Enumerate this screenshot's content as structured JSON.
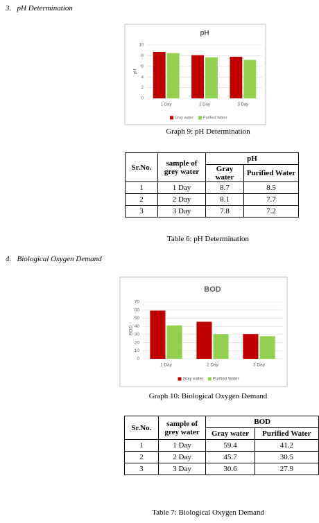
{
  "headings": [
    {
      "number": "3.",
      "text": "pH Determination"
    },
    {
      "number": "4.",
      "text": "Biological Oxygen Demand"
    }
  ],
  "chart_data": [
    {
      "type": "bar",
      "title": "pH",
      "y_label": "pH",
      "categories": [
        "1 Day",
        "2 Day",
        "3 Day"
      ],
      "series": [
        {
          "name": "Gray water",
          "color": "#c00000",
          "values": [
            8.7,
            8.1,
            7.8
          ]
        },
        {
          "name": "Purified Water",
          "color": "#92d050",
          "values": [
            8.5,
            7.7,
            7.2
          ]
        }
      ],
      "ylim": [
        0,
        10
      ],
      "yticks": [
        0,
        2,
        4,
        6,
        8,
        10
      ],
      "grid": true,
      "legend": "bottom"
    },
    {
      "type": "bar",
      "title": "BOD",
      "y_label": "BOD",
      "categories": [
        "1 Day",
        "2 Day",
        "3 Day"
      ],
      "series": [
        {
          "name": "Gray water",
          "color": "#c00000",
          "values": [
            59.4,
            45.7,
            30.6
          ]
        },
        {
          "name": "Purified Water",
          "color": "#92d050",
          "values": [
            41.2,
            30.5,
            27.9
          ]
        }
      ],
      "ylim": [
        0,
        70
      ],
      "yticks": [
        0,
        10,
        20,
        30,
        40,
        50,
        60,
        70
      ],
      "grid": true,
      "legend": "bottom"
    }
  ],
  "graph_captions": [
    "Graph 9: pH Determination",
    "Graph 10: Biological Oxygen Demand"
  ],
  "tables": [
    {
      "header": [
        "Sr.No.",
        "sample of grey water",
        "pH",
        "Gray water",
        "Purified Water"
      ],
      "rows": [
        [
          1,
          "1 Day",
          8.7,
          8.5
        ],
        [
          2,
          "2 Day",
          8.1,
          7.7
        ],
        [
          3,
          "3 Day",
          7.8,
          7.2
        ]
      ],
      "caption": "Table 6: pH Determination"
    },
    {
      "header": [
        "Sr.No.",
        "sample of grey water",
        "BOD",
        "Gray water",
        "Purified Water"
      ],
      "rows": [
        [
          1,
          "1 Day",
          59.4,
          41.2
        ],
        [
          2,
          "2 Day",
          45.7,
          30.5
        ],
        [
          3,
          "3 Day",
          30.6,
          27.9
        ]
      ],
      "caption": "Table 7: Biological Oxygen Demand"
    }
  ]
}
